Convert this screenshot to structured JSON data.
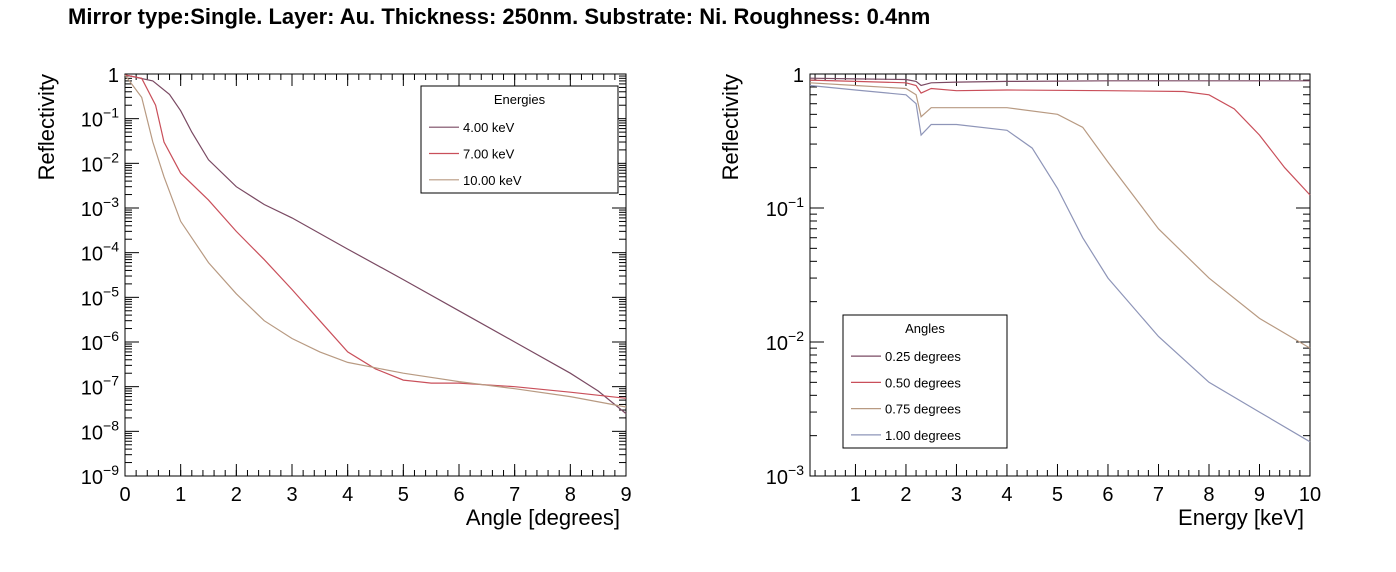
{
  "title": "Mirror type:Single. Layer: Au. Thickness: 250nm. Substrate: Ni. Roughness: 0.4nm",
  "chart_data": [
    {
      "type": "line",
      "xlabel": "Angle [degrees]",
      "ylabel": "Reflectivity",
      "xlim": [
        0,
        9
      ],
      "ylim": [
        1e-09,
        1
      ],
      "log_y": true,
      "grid": false,
      "x_ticks": [
        "0",
        "1",
        "2",
        "3",
        "4",
        "5",
        "6",
        "7",
        "8",
        "9"
      ],
      "y_ticks": [
        {
          "base": "1",
          "exp": ""
        },
        {
          "base": "10",
          "exp": "−1"
        },
        {
          "base": "10",
          "exp": "−2"
        },
        {
          "base": "10",
          "exp": "−3"
        },
        {
          "base": "10",
          "exp": "−4"
        },
        {
          "base": "10",
          "exp": "−5"
        },
        {
          "base": "10",
          "exp": "−6"
        },
        {
          "base": "10",
          "exp": "−7"
        },
        {
          "base": "10",
          "exp": "−8"
        },
        {
          "base": "10",
          "exp": "−9"
        }
      ],
      "legend": {
        "title": "Energies",
        "placement": "top-right"
      },
      "series": [
        {
          "name": "4.00 keV",
          "color": "#7a4a63",
          "x": [
            0,
            0.5,
            0.8,
            1.0,
            1.2,
            1.5,
            2.0,
            2.5,
            3.0,
            4.0,
            5.0,
            6.0,
            7.0,
            8.0,
            8.5,
            9.0
          ],
          "y": [
            0.95,
            0.7,
            0.35,
            0.15,
            0.05,
            0.012,
            0.003,
            0.0012,
            0.0006,
            0.00012,
            2.5e-05,
            5e-06,
            1e-06,
            2e-07,
            8e-08,
            2.5e-08
          ]
        },
        {
          "name": "7.00 keV",
          "color": "#c94f5a",
          "x": [
            0,
            0.3,
            0.55,
            0.7,
            1.0,
            1.5,
            2.0,
            2.5,
            3.0,
            3.5,
            4.0,
            4.5,
            5.0,
            5.5,
            6.0,
            7.0,
            8.0,
            9.0
          ],
          "y": [
            0.95,
            0.8,
            0.2,
            0.03,
            0.006,
            0.0015,
            0.0003,
            7e-05,
            1.5e-05,
            3e-06,
            6e-07,
            2.5e-07,
            1.4e-07,
            1.2e-07,
            1.2e-07,
            1e-07,
            7.5e-08,
            5.5e-08
          ]
        },
        {
          "name": "10.00 keV",
          "color": "#b89a82",
          "x": [
            0,
            0.3,
            0.5,
            0.7,
            1.0,
            1.5,
            2.0,
            2.5,
            3.0,
            3.5,
            4.0,
            5.0,
            6.0,
            7.0,
            8.0,
            9.0
          ],
          "y": [
            0.95,
            0.3,
            0.03,
            0.005,
            0.0005,
            6e-05,
            1.2e-05,
            3e-06,
            1.2e-06,
            6e-07,
            3.5e-07,
            2e-07,
            1.3e-07,
            9e-08,
            6e-08,
            3.5e-08
          ]
        }
      ]
    },
    {
      "type": "line",
      "xlabel": "Energy [keV]",
      "ylabel": "Reflectivity",
      "xlim": [
        0.1,
        10
      ],
      "ylim": [
        0.001,
        1
      ],
      "log_y": true,
      "grid": false,
      "x_ticks": [
        "1",
        "2",
        "3",
        "4",
        "5",
        "6",
        "7",
        "8",
        "9",
        "10"
      ],
      "y_ticks": [
        {
          "base": "1",
          "exp": ""
        },
        {
          "base": "10",
          "exp": "−1"
        },
        {
          "base": "10",
          "exp": "−2"
        },
        {
          "base": "10",
          "exp": "−3"
        }
      ],
      "legend": {
        "title": "Angles",
        "placement": "bottom-left"
      },
      "series": [
        {
          "name": "0.25 degrees",
          "color": "#7a4a63",
          "x": [
            0.1,
            1.0,
            2.0,
            2.2,
            2.3,
            2.5,
            3.0,
            4.0,
            6.0,
            8.0,
            10.0
          ],
          "y": [
            0.93,
            0.92,
            0.91,
            0.88,
            0.82,
            0.86,
            0.87,
            0.88,
            0.89,
            0.89,
            0.89
          ]
        },
        {
          "name": "0.50 degrees",
          "color": "#c94f5a",
          "x": [
            0.1,
            1.0,
            2.0,
            2.2,
            2.3,
            2.5,
            3.0,
            4.0,
            6.0,
            7.5,
            8.0,
            8.5,
            9.0,
            9.5,
            10.0
          ],
          "y": [
            0.9,
            0.88,
            0.86,
            0.82,
            0.72,
            0.78,
            0.75,
            0.76,
            0.75,
            0.74,
            0.7,
            0.55,
            0.35,
            0.2,
            0.125
          ]
        },
        {
          "name": "0.75 degrees",
          "color": "#b89a82",
          "x": [
            0.1,
            1.0,
            2.0,
            2.2,
            2.3,
            2.5,
            3.0,
            4.0,
            5.0,
            5.5,
            6.0,
            7.0,
            8.0,
            9.0,
            10.0
          ],
          "y": [
            0.86,
            0.82,
            0.78,
            0.7,
            0.48,
            0.56,
            0.56,
            0.56,
            0.5,
            0.4,
            0.22,
            0.07,
            0.03,
            0.015,
            0.009
          ]
        },
        {
          "name": "1.00 degrees",
          "color": "#8e95b8",
          "x": [
            0.1,
            1.0,
            2.0,
            2.2,
            2.3,
            2.5,
            3.0,
            4.0,
            4.5,
            5.0,
            5.5,
            6.0,
            7.0,
            8.0,
            9.0,
            10.0
          ],
          "y": [
            0.82,
            0.76,
            0.7,
            0.6,
            0.35,
            0.42,
            0.42,
            0.38,
            0.28,
            0.14,
            0.06,
            0.03,
            0.011,
            0.005,
            0.003,
            0.0018
          ]
        }
      ]
    }
  ]
}
